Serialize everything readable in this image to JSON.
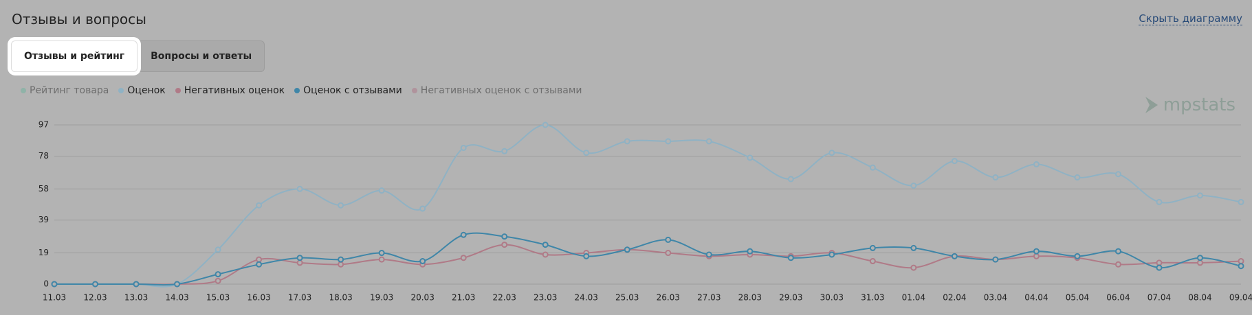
{
  "header": {
    "title": "Отзывы и вопросы",
    "link": "Скрыть диаграмму"
  },
  "tabs": [
    {
      "label": "Отзывы и рейтинг",
      "active": true
    },
    {
      "label": "Вопросы и ответы",
      "active": false
    }
  ],
  "logo": "mpstats",
  "chart_data": {
    "type": "line",
    "categories": [
      "11.03",
      "12.03",
      "13.03",
      "14.03",
      "15.03",
      "16.03",
      "17.03",
      "18.03",
      "19.03",
      "20.03",
      "21.03",
      "22.03",
      "23.03",
      "24.03",
      "25.03",
      "26.03",
      "27.03",
      "28.03",
      "29.03",
      "30.03",
      "31.03",
      "01.04",
      "02.04",
      "03.04",
      "04.04",
      "05.04",
      "06.04",
      "07.04",
      "08.04",
      "09.04"
    ],
    "ylim": [
      0,
      97
    ],
    "yticks": [
      0,
      19,
      39,
      58,
      78,
      97
    ],
    "grid": true,
    "series": [
      {
        "name": "Рейтинг товара",
        "color": "#8fb3a8",
        "visible": false
      },
      {
        "name": "Оценок",
        "color": "#8fb2c4",
        "visible": true,
        "values": [
          0,
          0,
          0,
          0,
          21,
          48,
          58,
          48,
          57,
          46,
          83,
          81,
          97,
          80,
          87,
          87,
          87,
          77,
          64,
          80,
          71,
          60,
          75,
          65,
          73,
          65,
          67,
          50,
          54,
          50
        ]
      },
      {
        "name": "Негативных оценок",
        "color": "#b07a87",
        "visible": true,
        "values": [
          0,
          0,
          0,
          0,
          2,
          15,
          13,
          12,
          15,
          12,
          16,
          24,
          18,
          19,
          21,
          19,
          17,
          18,
          17,
          19,
          14,
          10,
          17,
          15,
          17,
          16,
          12,
          13,
          13,
          14
        ]
      },
      {
        "name": "Оценок с отзывами",
        "color": "#3f86a8",
        "visible": true,
        "values": [
          0,
          0,
          0,
          0,
          6,
          12,
          16,
          15,
          19,
          14,
          30,
          29,
          24,
          17,
          21,
          27,
          18,
          20,
          16,
          18,
          22,
          22,
          17,
          15,
          20,
          17,
          20,
          10,
          16,
          11
        ]
      },
      {
        "name": "Негативных оценок с отзывами",
        "color": "#b0939c",
        "visible": false
      }
    ]
  }
}
